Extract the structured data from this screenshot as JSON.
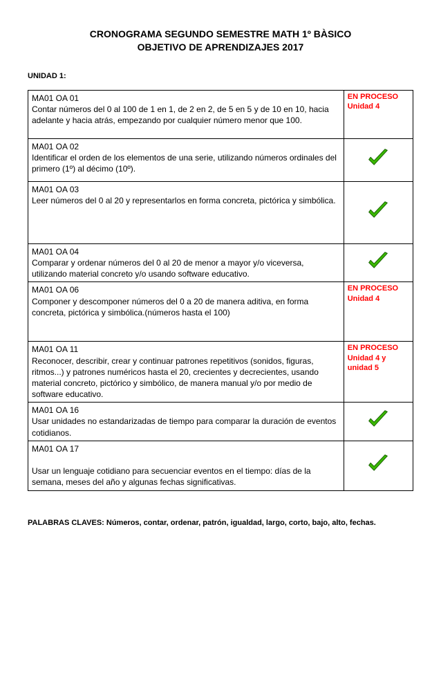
{
  "title_line1": "CRONOGRAMA SEGUNDO SEMESTRE  MATH 1º BÀSICO",
  "title_line2": "OBJETIVO DE  APRENDIZAJES 2017",
  "unit_label": "UNIDAD 1:",
  "rows": [
    {
      "code": "MA01 OA 01",
      "text": "Contar números del 0 al 100 de 1 en 1, de 2 en 2, de 5 en 5 y de 10 en 10, hacia adelante y hacia atrás, empezando por cualquier número menor que 100.",
      "status_type": "text",
      "status_text": "EN PROCESO\nUnidad 4",
      "min_height": 70
    },
    {
      "code": "MA01 OA 02",
      "text": "Identificar el orden de los elementos de una serie, utilizando números ordinales del primero (1º) al décimo (10º).",
      "status_type": "check",
      "min_height": 62
    },
    {
      "code": "MA01 OA 03",
      "text": "Leer números del 0 al 20 y representarlos en forma concreta, pictórica y simbólica.",
      "status_type": "check",
      "min_height": 90
    },
    {
      "code": "MA01 OA 04",
      "text": "Comparar y ordenar números del 0 al 20 de menor a mayor y/o viceversa, utilizando material concreto y/o usando software educativo.",
      "status_type": "check",
      "min_height": 50
    },
    {
      "code": "MA01 OA 06",
      "text": "Componer y descomponer números del 0 a 20 de manera aditiva, en forma concreta, pictórica y simbólica.(números hasta el 100)",
      "status_type": "text",
      "status_text": "EN PROCESO\nUnidad 4",
      "min_height": 86
    },
    {
      "code": "MA01 OA 11",
      "text": "Reconocer, describir, crear y continuar patrones repetitivos (sonidos, figuras, ritmos...) y patrones numéricos hasta el 20, crecientes y decrecientes, usando material concreto, pictórico y simbólico, de manera manual y/o por medio de software educativo.",
      "status_type": "text",
      "status_text": "EN PROCESO\nUnidad 4 y\nunidad 5",
      "min_height": 82
    },
    {
      "code": "MA01 OA 16",
      "text": "Usar unidades no estandarizadas de tiempo para comparar la duración de eventos cotidianos.",
      "status_type": "check",
      "min_height": 50
    },
    {
      "code": "MA01 OA 17",
      "text": "\nUsar un lenguaje cotidiano para secuenciar eventos en el tiempo: días de la semana, meses del año y algunas fechas significativas.",
      "status_type": "check",
      "min_height": 62
    }
  ],
  "keywords": "PALABRAS CLAVES: Números, contar, ordenar, patrón, igualdad, largo, corto, bajo, alto, fechas.",
  "check_colors": {
    "fill": "#3bb800",
    "stroke": "#186000"
  }
}
